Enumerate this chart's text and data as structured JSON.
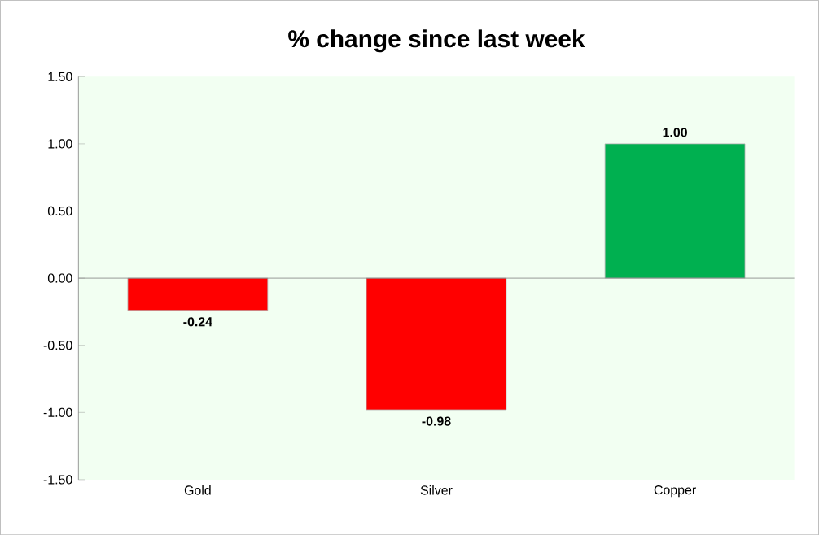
{
  "chart_data": {
    "type": "bar",
    "title": "% change since last week",
    "categories": [
      "Gold",
      "Silver",
      "Copper"
    ],
    "values": [
      -0.24,
      -0.98,
      1.0
    ],
    "colors": [
      "#ff0000",
      "#ff0000",
      "#00b050"
    ],
    "value_labels": [
      "-0.24",
      "-0.98",
      "1.00"
    ],
    "ylim": [
      -1.5,
      1.5
    ],
    "yticks": [
      {
        "value": -1.5,
        "label": "-1.50"
      },
      {
        "value": -1.0,
        "label": "-1.00"
      },
      {
        "value": -0.5,
        "label": "-0.50"
      },
      {
        "value": 0,
        "label": "0.00"
      },
      {
        "value": 0.5,
        "label": "0.50"
      },
      {
        "value": 1.0,
        "label": "1.00"
      },
      {
        "value": 1.5,
        "label": "1.50"
      }
    ]
  }
}
